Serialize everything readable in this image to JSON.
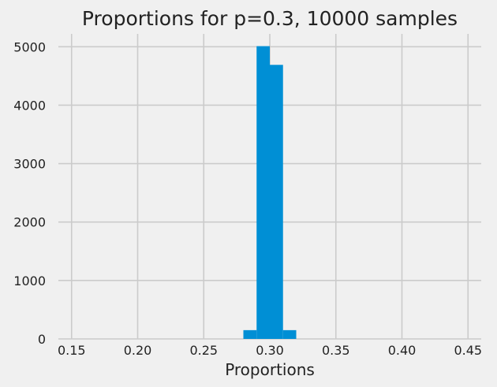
{
  "chart_data": {
    "type": "bar",
    "title": "Proportions for p=0.3, 10000 samples",
    "xlabel": "Proportions",
    "ylabel": "",
    "xlim": [
      0.14,
      0.46
    ],
    "ylim": [
      0,
      5220
    ],
    "grid": true,
    "x_ticks": [
      "0.15",
      "0.20",
      "0.25",
      "0.30",
      "0.35",
      "0.40",
      "0.45"
    ],
    "x_tick_values": [
      0.15,
      0.2,
      0.25,
      0.3,
      0.35,
      0.4,
      0.45
    ],
    "y_ticks": [
      "0",
      "1000",
      "2000",
      "3000",
      "4000",
      "5000"
    ],
    "y_tick_values": [
      0,
      1000,
      2000,
      3000,
      4000,
      5000
    ],
    "bins": [
      {
        "x0": 0.28,
        "x1": 0.29,
        "value": 150
      },
      {
        "x0": 0.29,
        "x1": 0.3,
        "value": 5010
      },
      {
        "x0": 0.3,
        "x1": 0.31,
        "value": 4690
      },
      {
        "x0": 0.31,
        "x1": 0.32,
        "value": 150
      }
    ],
    "colors": {
      "background": "#f0f0f0",
      "bar": "#008fd5",
      "grid": "#cbcbcb",
      "text": "#222222"
    }
  }
}
